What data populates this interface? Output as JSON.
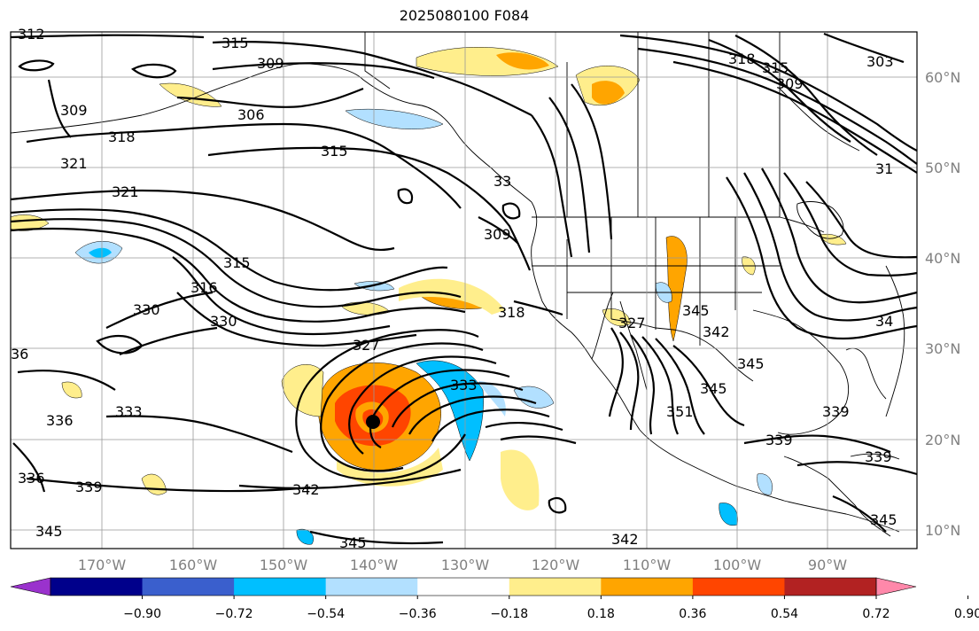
{
  "title": "2025080100 F084",
  "lon_labels": [
    "170°W",
    "160°W",
    "150°W",
    "140°W",
    "130°W",
    "120°W",
    "110°W",
    "100°W",
    "90°W"
  ],
  "lat_labels": [
    "60°N",
    "50°N",
    "40°N",
    "30°N",
    "20°N",
    "10°N"
  ],
  "contour_labels": {
    "l312": "312",
    "l315a": "315",
    "l309a": "309",
    "l306": "306",
    "l309b": "309",
    "l318a": "318",
    "l321a": "321",
    "l315b": "315",
    "l321b": "321",
    "l315c": "315",
    "l316": "316",
    "l330a": "330",
    "l330b": "330",
    "l309c": "309",
    "l318b": "318",
    "l327": "327",
    "l345a": "345",
    "l342a": "342",
    "l345b": "345",
    "l345c": "345",
    "l351": "351",
    "l339a": "339",
    "l339b": "339",
    "l339c": "339",
    "l336a": "336",
    "l333": "333",
    "l336b": "336",
    "l339d": "339",
    "l342b": "342",
    "l345d": "345",
    "l342c": "342",
    "l345e": "345",
    "l333b": "333",
    "l34": "34",
    "l318c": "318",
    "l315d": "315",
    "l309d": "309",
    "l303": "303",
    "l31": "31",
    "l33": "33",
    "l36": "36",
    "l327b": "327",
    "l345f": "345"
  },
  "colorbar": {
    "ticks": [
      "−0.90",
      "−0.72",
      "−0.54",
      "−0.36",
      "−0.18",
      "0.18",
      "0.36",
      "0.54",
      "0.72",
      "0.90"
    ],
    "colors": [
      "#9a32cd",
      "#00008b",
      "#3a5fcd",
      "#00bfff",
      "#b2e0ff",
      "#ffffff",
      "#ffee8c",
      "#ffa500",
      "#ff4500",
      "#b22222",
      "#ff88aa"
    ]
  },
  "storm_marker": "tropical-cyclone-center"
}
